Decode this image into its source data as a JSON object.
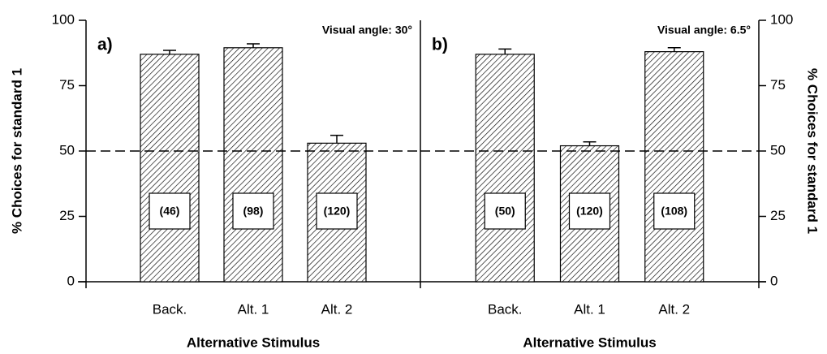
{
  "chart_data": [
    {
      "type": "bar",
      "panel_label": "a)",
      "annotation": "Visual angle: 30°",
      "categories": [
        "Back.",
        "Alt. 1",
        "Alt. 2"
      ],
      "values": [
        87,
        89.5,
        53
      ],
      "errors": [
        1.5,
        1.5,
        3
      ],
      "sample_sizes": [
        "(46)",
        "(98)",
        "(120)"
      ],
      "reference_line": 50,
      "x_label": "Alternative Stimulus",
      "y_label": "% Choices for standard 1",
      "axis_side": "left",
      "ylim": [
        0,
        100
      ],
      "yticks": [
        0,
        25,
        50,
        75,
        100
      ]
    },
    {
      "type": "bar",
      "panel_label": "b)",
      "annotation": "Visual angle: 6.5°",
      "categories": [
        "Back.",
        "Alt. 1",
        "Alt. 2"
      ],
      "values": [
        87,
        52,
        88
      ],
      "errors": [
        2,
        1.5,
        1.5
      ],
      "sample_sizes": [
        "(50)",
        "(120)",
        "(108)"
      ],
      "reference_line": 50,
      "x_label": "Alternative Stimulus",
      "y_label": "% Choices for standard 1",
      "axis_side": "right",
      "ylim": [
        0,
        100
      ],
      "yticks": [
        0,
        25,
        50,
        75,
        100
      ]
    }
  ]
}
